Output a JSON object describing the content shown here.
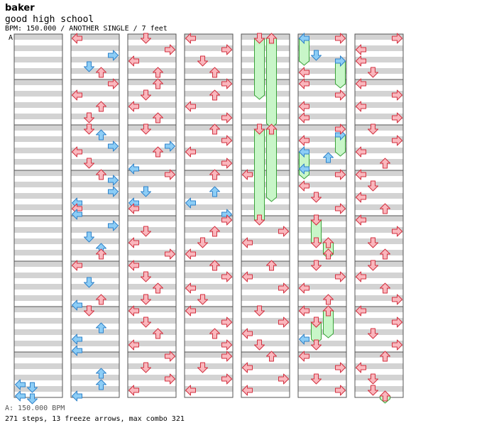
{
  "header": {
    "artist": "baker",
    "title": "good high school",
    "meta": "BPM: 150.000 / ANOTHER SINGLE / 7 feet",
    "bpm_marker": "A"
  },
  "footer": {
    "bpm_line": "A: 150.000 BPM",
    "stats_line": "271 steps, 13 freeze arrows, max combo 321"
  },
  "colors": {
    "stripe": "#d3d3d3",
    "lane_bg": "#ffffff",
    "border": "#555555",
    "arrow_red": "#f9b7bd",
    "arrow_red_stroke": "#d33140",
    "arrow_blue": "#8ccdf6",
    "arrow_blue_stroke": "#2f82c9",
    "freeze_fill": "#c8f6c8",
    "freeze_stroke": "#3aa33a"
  },
  "chart_data": {
    "type": "step-chart",
    "columns": 7,
    "measures_per_column": 8,
    "lanes": [
      "left",
      "down",
      "up",
      "right"
    ],
    "measures_per_column_note": "rows are 16th-note positions within a measure (0-15)",
    "notes": [
      {
        "c": 0,
        "m": 7,
        "row": 10,
        "d": "left"
      },
      {
        "c": 0,
        "m": 7,
        "row": 11,
        "d": "down"
      },
      {
        "c": 0,
        "m": 7,
        "row": 14,
        "d": "left"
      },
      {
        "c": 0,
        "m": 7,
        "row": 15,
        "d": "down"
      },
      {
        "c": 1,
        "m": 0,
        "row": 0,
        "d": "left"
      },
      {
        "c": 1,
        "m": 0,
        "row": 6,
        "d": "right"
      },
      {
        "c": 1,
        "m": 0,
        "row": 10,
        "d": "down"
      },
      {
        "c": 1,
        "m": 0,
        "row": 12,
        "d": "up"
      },
      {
        "c": 1,
        "m": 1,
        "row": 0,
        "d": "right"
      },
      {
        "c": 1,
        "m": 1,
        "row": 4,
        "d": "left"
      },
      {
        "c": 1,
        "m": 1,
        "row": 8,
        "d": "up"
      },
      {
        "c": 1,
        "m": 1,
        "row": 12,
        "d": "down"
      },
      {
        "c": 1,
        "m": 2,
        "row": 0,
        "d": "down"
      },
      {
        "c": 1,
        "m": 2,
        "row": 2,
        "d": "up"
      },
      {
        "c": 1,
        "m": 2,
        "row": 6,
        "d": "right"
      },
      {
        "c": 1,
        "m": 2,
        "row": 8,
        "d": "left"
      },
      {
        "c": 1,
        "m": 2,
        "row": 12,
        "d": "down"
      },
      {
        "c": 1,
        "m": 3,
        "row": 0,
        "d": "up"
      },
      {
        "c": 1,
        "m": 3,
        "row": 2,
        "d": "right"
      },
      {
        "c": 1,
        "m": 3,
        "row": 6,
        "d": "right"
      },
      {
        "c": 1,
        "m": 3,
        "row": 10,
        "d": "left"
      },
      {
        "c": 1,
        "m": 3,
        "row": 12,
        "d": "left"
      },
      {
        "c": 1,
        "m": 3,
        "row": 14,
        "d": "left"
      },
      {
        "c": 1,
        "m": 4,
        "row": 2,
        "d": "right"
      },
      {
        "c": 1,
        "m": 4,
        "row": 6,
        "d": "down"
      },
      {
        "c": 1,
        "m": 4,
        "row": 10,
        "d": "up"
      },
      {
        "c": 1,
        "m": 4,
        "row": 12,
        "d": "up"
      },
      {
        "c": 1,
        "m": 5,
        "row": 0,
        "d": "left"
      },
      {
        "c": 1,
        "m": 5,
        "row": 6,
        "d": "down"
      },
      {
        "c": 1,
        "m": 5,
        "row": 12,
        "d": "up"
      },
      {
        "c": 1,
        "m": 5,
        "row": 14,
        "d": "left"
      },
      {
        "c": 1,
        "m": 6,
        "row": 0,
        "d": "down"
      },
      {
        "c": 1,
        "m": 6,
        "row": 6,
        "d": "up"
      },
      {
        "c": 1,
        "m": 6,
        "row": 10,
        "d": "left"
      },
      {
        "c": 1,
        "m": 6,
        "row": 14,
        "d": "left"
      },
      {
        "c": 1,
        "m": 7,
        "row": 6,
        "d": "up"
      },
      {
        "c": 1,
        "m": 7,
        "row": 10,
        "d": "up"
      },
      {
        "c": 1,
        "m": 7,
        "row": 14,
        "d": "left"
      },
      {
        "c": 2,
        "m": 0,
        "row": 0,
        "d": "down"
      },
      {
        "c": 2,
        "m": 0,
        "row": 4,
        "d": "right"
      },
      {
        "c": 2,
        "m": 0,
        "row": 8,
        "d": "left"
      },
      {
        "c": 2,
        "m": 0,
        "row": 12,
        "d": "up"
      },
      {
        "c": 2,
        "m": 1,
        "row": 0,
        "d": "up"
      },
      {
        "c": 2,
        "m": 1,
        "row": 4,
        "d": "down"
      },
      {
        "c": 2,
        "m": 1,
        "row": 8,
        "d": "left"
      },
      {
        "c": 2,
        "m": 1,
        "row": 12,
        "d": "up"
      },
      {
        "c": 2,
        "m": 2,
        "row": 0,
        "d": "down"
      },
      {
        "c": 2,
        "m": 2,
        "row": 6,
        "d": "right"
      },
      {
        "c": 2,
        "m": 2,
        "row": 8,
        "d": "up"
      },
      {
        "c": 2,
        "m": 2,
        "row": 14,
        "d": "left"
      },
      {
        "c": 2,
        "m": 3,
        "row": 0,
        "d": "right"
      },
      {
        "c": 2,
        "m": 3,
        "row": 6,
        "d": "down"
      },
      {
        "c": 2,
        "m": 3,
        "row": 10,
        "d": "left"
      },
      {
        "c": 2,
        "m": 3,
        "row": 12,
        "d": "left"
      },
      {
        "c": 2,
        "m": 4,
        "row": 4,
        "d": "down"
      },
      {
        "c": 2,
        "m": 4,
        "row": 8,
        "d": "left"
      },
      {
        "c": 2,
        "m": 4,
        "row": 12,
        "d": "right"
      },
      {
        "c": 2,
        "m": 5,
        "row": 0,
        "d": "left"
      },
      {
        "c": 2,
        "m": 5,
        "row": 4,
        "d": "down"
      },
      {
        "c": 2,
        "m": 5,
        "row": 8,
        "d": "up"
      },
      {
        "c": 2,
        "m": 5,
        "row": 12,
        "d": "down"
      },
      {
        "c": 2,
        "m": 6,
        "row": 0,
        "d": "left"
      },
      {
        "c": 2,
        "m": 6,
        "row": 4,
        "d": "down"
      },
      {
        "c": 2,
        "m": 6,
        "row": 8,
        "d": "up"
      },
      {
        "c": 2,
        "m": 6,
        "row": 12,
        "d": "left"
      },
      {
        "c": 2,
        "m": 7,
        "row": 0,
        "d": "right"
      },
      {
        "c": 2,
        "m": 7,
        "row": 4,
        "d": "down"
      },
      {
        "c": 2,
        "m": 7,
        "row": 8,
        "d": "right"
      },
      {
        "c": 2,
        "m": 7,
        "row": 12,
        "d": "left"
      },
      {
        "c": 3,
        "m": 0,
        "row": 0,
        "d": "left"
      },
      {
        "c": 3,
        "m": 0,
        "row": 4,
        "d": "right"
      },
      {
        "c": 3,
        "m": 0,
        "row": 8,
        "d": "down"
      },
      {
        "c": 3,
        "m": 0,
        "row": 12,
        "d": "up"
      },
      {
        "c": 3,
        "m": 1,
        "row": 0,
        "d": "right"
      },
      {
        "c": 3,
        "m": 1,
        "row": 4,
        "d": "up"
      },
      {
        "c": 3,
        "m": 1,
        "row": 8,
        "d": "left"
      },
      {
        "c": 3,
        "m": 1,
        "row": 12,
        "d": "right"
      },
      {
        "c": 3,
        "m": 2,
        "row": 0,
        "d": "up"
      },
      {
        "c": 3,
        "m": 2,
        "row": 4,
        "d": "right"
      },
      {
        "c": 3,
        "m": 2,
        "row": 8,
        "d": "left"
      },
      {
        "c": 3,
        "m": 2,
        "row": 12,
        "d": "right"
      },
      {
        "c": 3,
        "m": 3,
        "row": 0,
        "d": "up"
      },
      {
        "c": 3,
        "m": 3,
        "row": 6,
        "d": "up"
      },
      {
        "c": 3,
        "m": 3,
        "row": 10,
        "d": "left"
      },
      {
        "c": 3,
        "m": 3,
        "row": 14,
        "d": "right"
      },
      {
        "c": 3,
        "m": 4,
        "row": 0,
        "d": "right"
      },
      {
        "c": 3,
        "m": 4,
        "row": 4,
        "d": "up"
      },
      {
        "c": 3,
        "m": 4,
        "row": 8,
        "d": "down"
      },
      {
        "c": 3,
        "m": 4,
        "row": 12,
        "d": "left"
      },
      {
        "c": 3,
        "m": 5,
        "row": 0,
        "d": "up"
      },
      {
        "c": 3,
        "m": 5,
        "row": 4,
        "d": "right"
      },
      {
        "c": 3,
        "m": 5,
        "row": 8,
        "d": "left"
      },
      {
        "c": 3,
        "m": 5,
        "row": 12,
        "d": "down"
      },
      {
        "c": 3,
        "m": 6,
        "row": 0,
        "d": "left"
      },
      {
        "c": 3,
        "m": 6,
        "row": 4,
        "d": "right"
      },
      {
        "c": 3,
        "m": 6,
        "row": 8,
        "d": "up"
      },
      {
        "c": 3,
        "m": 6,
        "row": 12,
        "d": "right"
      },
      {
        "c": 3,
        "m": 7,
        "row": 0,
        "d": "right"
      },
      {
        "c": 3,
        "m": 7,
        "row": 4,
        "d": "down"
      },
      {
        "c": 3,
        "m": 7,
        "row": 8,
        "d": "right"
      },
      {
        "c": 3,
        "m": 7,
        "row": 12,
        "d": "left"
      },
      {
        "c": 4,
        "m": 3,
        "row": 0,
        "d": "left"
      },
      {
        "c": 4,
        "m": 4,
        "row": 0,
        "d": "down"
      },
      {
        "c": 4,
        "m": 4,
        "row": 4,
        "d": "right"
      },
      {
        "c": 4,
        "m": 4,
        "row": 8,
        "d": "left"
      },
      {
        "c": 4,
        "m": 5,
        "row": 0,
        "d": "up"
      },
      {
        "c": 4,
        "m": 5,
        "row": 4,
        "d": "left"
      },
      {
        "c": 4,
        "m": 5,
        "row": 8,
        "d": "right"
      },
      {
        "c": 4,
        "m": 6,
        "row": 0,
        "d": "down"
      },
      {
        "c": 4,
        "m": 6,
        "row": 4,
        "d": "right"
      },
      {
        "c": 4,
        "m": 6,
        "row": 8,
        "d": "left"
      },
      {
        "c": 4,
        "m": 6,
        "row": 12,
        "d": "down"
      },
      {
        "c": 4,
        "m": 7,
        "row": 0,
        "d": "up"
      },
      {
        "c": 4,
        "m": 7,
        "row": 4,
        "d": "left"
      },
      {
        "c": 4,
        "m": 7,
        "row": 8,
        "d": "right"
      },
      {
        "c": 4,
        "m": 7,
        "row": 12,
        "d": "left"
      },
      {
        "c": 5,
        "m": 0,
        "row": 0,
        "d": "right"
      },
      {
        "c": 5,
        "m": 0,
        "row": 6,
        "d": "down"
      },
      {
        "c": 5,
        "m": 0,
        "row": 12,
        "d": "left"
      },
      {
        "c": 5,
        "m": 1,
        "row": 0,
        "d": "left"
      },
      {
        "c": 5,
        "m": 1,
        "row": 4,
        "d": "right"
      },
      {
        "c": 5,
        "m": 1,
        "row": 8,
        "d": "left"
      },
      {
        "c": 5,
        "m": 1,
        "row": 12,
        "d": "left"
      },
      {
        "c": 5,
        "m": 2,
        "row": 0,
        "d": "right"
      },
      {
        "c": 5,
        "m": 2,
        "row": 4,
        "d": "left"
      },
      {
        "c": 5,
        "m": 2,
        "row": 10,
        "d": "up"
      },
      {
        "c": 5,
        "m": 2,
        "row": 14,
        "d": "left"
      },
      {
        "c": 5,
        "m": 3,
        "row": 0,
        "d": "right"
      },
      {
        "c": 5,
        "m": 3,
        "row": 4,
        "d": "left"
      },
      {
        "c": 5,
        "m": 3,
        "row": 8,
        "d": "down"
      },
      {
        "c": 5,
        "m": 3,
        "row": 12,
        "d": "right"
      },
      {
        "c": 5,
        "m": 4,
        "row": 0,
        "d": "down"
      },
      {
        "c": 5,
        "m": 4,
        "row": 8,
        "d": "down"
      },
      {
        "c": 5,
        "m": 4,
        "row": 12,
        "d": "up"
      },
      {
        "c": 5,
        "m": 5,
        "row": 0,
        "d": "down"
      },
      {
        "c": 5,
        "m": 5,
        "row": 4,
        "d": "right"
      },
      {
        "c": 5,
        "m": 5,
        "row": 8,
        "d": "left"
      },
      {
        "c": 5,
        "m": 5,
        "row": 12,
        "d": "up"
      },
      {
        "c": 5,
        "m": 6,
        "row": 0,
        "d": "left"
      },
      {
        "c": 5,
        "m": 6,
        "row": 4,
        "d": "down"
      },
      {
        "c": 5,
        "m": 6,
        "row": 10,
        "d": "left"
      },
      {
        "c": 5,
        "m": 6,
        "row": 12,
        "d": "down"
      },
      {
        "c": 5,
        "m": 7,
        "row": 0,
        "d": "left"
      },
      {
        "c": 5,
        "m": 7,
        "row": 4,
        "d": "right"
      },
      {
        "c": 5,
        "m": 7,
        "row": 8,
        "d": "down"
      },
      {
        "c": 5,
        "m": 7,
        "row": 12,
        "d": "right"
      },
      {
        "c": 6,
        "m": 0,
        "row": 0,
        "d": "right"
      },
      {
        "c": 6,
        "m": 0,
        "row": 4,
        "d": "left"
      },
      {
        "c": 6,
        "m": 0,
        "row": 8,
        "d": "left"
      },
      {
        "c": 6,
        "m": 0,
        "row": 12,
        "d": "down"
      },
      {
        "c": 6,
        "m": 1,
        "row": 0,
        "d": "left"
      },
      {
        "c": 6,
        "m": 1,
        "row": 4,
        "d": "right"
      },
      {
        "c": 6,
        "m": 1,
        "row": 8,
        "d": "left"
      },
      {
        "c": 6,
        "m": 1,
        "row": 12,
        "d": "right"
      },
      {
        "c": 6,
        "m": 2,
        "row": 0,
        "d": "down"
      },
      {
        "c": 6,
        "m": 2,
        "row": 4,
        "d": "right"
      },
      {
        "c": 6,
        "m": 2,
        "row": 8,
        "d": "left"
      },
      {
        "c": 6,
        "m": 2,
        "row": 12,
        "d": "up"
      },
      {
        "c": 6,
        "m": 3,
        "row": 0,
        "d": "left"
      },
      {
        "c": 6,
        "m": 3,
        "row": 4,
        "d": "down"
      },
      {
        "c": 6,
        "m": 3,
        "row": 8,
        "d": "left"
      },
      {
        "c": 6,
        "m": 3,
        "row": 12,
        "d": "up"
      },
      {
        "c": 6,
        "m": 4,
        "row": 0,
        "d": "left"
      },
      {
        "c": 6,
        "m": 4,
        "row": 4,
        "d": "right"
      },
      {
        "c": 6,
        "m": 4,
        "row": 8,
        "d": "down"
      },
      {
        "c": 6,
        "m": 4,
        "row": 12,
        "d": "up"
      },
      {
        "c": 6,
        "m": 5,
        "row": 0,
        "d": "down"
      },
      {
        "c": 6,
        "m": 5,
        "row": 4,
        "d": "left"
      },
      {
        "c": 6,
        "m": 5,
        "row": 8,
        "d": "up"
      },
      {
        "c": 6,
        "m": 5,
        "row": 12,
        "d": "right"
      },
      {
        "c": 6,
        "m": 6,
        "row": 0,
        "d": "left"
      },
      {
        "c": 6,
        "m": 6,
        "row": 4,
        "d": "right"
      },
      {
        "c": 6,
        "m": 6,
        "row": 8,
        "d": "down"
      },
      {
        "c": 6,
        "m": 6,
        "row": 12,
        "d": "right"
      },
      {
        "c": 6,
        "m": 7,
        "row": 0,
        "d": "up"
      },
      {
        "c": 6,
        "m": 7,
        "row": 4,
        "d": "left"
      },
      {
        "c": 6,
        "m": 7,
        "row": 8,
        "d": "down"
      },
      {
        "c": 6,
        "m": 7,
        "row": 12,
        "d": "down"
      }
    ],
    "freezes": [
      {
        "c": 4,
        "m": 0,
        "row": 0,
        "rows": 20,
        "lane": "down"
      },
      {
        "c": 4,
        "m": 0,
        "row": 0,
        "rows": 30,
        "lane": "up"
      },
      {
        "c": 4,
        "m": 2,
        "row": 0,
        "rows": 32,
        "lane": "down"
      },
      {
        "c": 4,
        "m": 2,
        "row": 0,
        "rows": 24,
        "lane": "up"
      },
      {
        "c": 5,
        "m": 0,
        "row": 0,
        "rows": 8,
        "lane": "left"
      },
      {
        "c": 5,
        "m": 0,
        "row": 8,
        "rows": 8,
        "lane": "right"
      },
      {
        "c": 5,
        "m": 2,
        "row": 8,
        "rows": 8,
        "lane": "left"
      },
      {
        "c": 5,
        "m": 2,
        "row": 2,
        "rows": 6,
        "lane": "right"
      },
      {
        "c": 5,
        "m": 4,
        "row": 0,
        "rows": 8,
        "lane": "down"
      },
      {
        "c": 5,
        "m": 4,
        "row": 8,
        "rows": 4,
        "lane": "up"
      },
      {
        "c": 5,
        "m": 6,
        "row": 0,
        "rows": 8,
        "lane": "up"
      },
      {
        "c": 5,
        "m": 6,
        "row": 4,
        "rows": 6,
        "lane": "down"
      },
      {
        "c": 6,
        "m": 7,
        "row": 14,
        "rows": 1,
        "lane": "up"
      }
    ]
  }
}
